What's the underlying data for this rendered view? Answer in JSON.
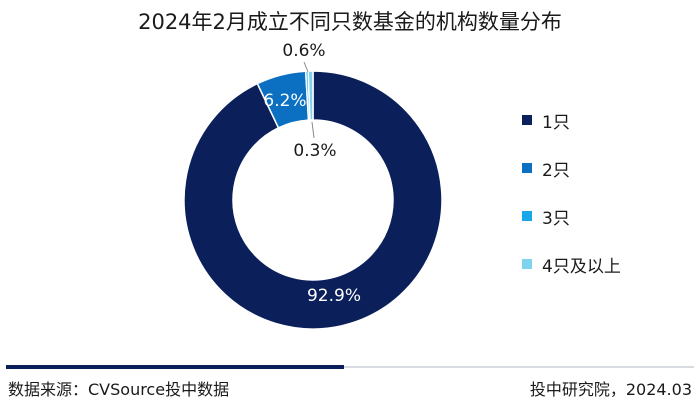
{
  "title": "2024年2月成立不同只数基金的机构数量分布",
  "chart_data": {
    "type": "pie",
    "donut": true,
    "categories": [
      "1只",
      "2只",
      "3只",
      "4只及以上"
    ],
    "values": [
      92.9,
      6.2,
      0.3,
      0.6
    ],
    "labels": [
      "92.9%",
      "6.2%",
      "0.3%",
      "0.6%"
    ],
    "colors": [
      "#0b1f5b",
      "#0b6fc2",
      "#1aa6e8",
      "#7fd3ee"
    ],
    "legend_position": "right"
  },
  "legend": [
    {
      "label": "1只",
      "color": "#0b1f5b"
    },
    {
      "label": "2只",
      "color": "#0b6fc2"
    },
    {
      "label": "3只",
      "color": "#1aa6e8"
    },
    {
      "label": "4只及以上",
      "color": "#7fd3ee"
    }
  ],
  "footer": {
    "source": "数据来源：CVSource投中数据",
    "credit": "投中研究院，2024.03"
  }
}
